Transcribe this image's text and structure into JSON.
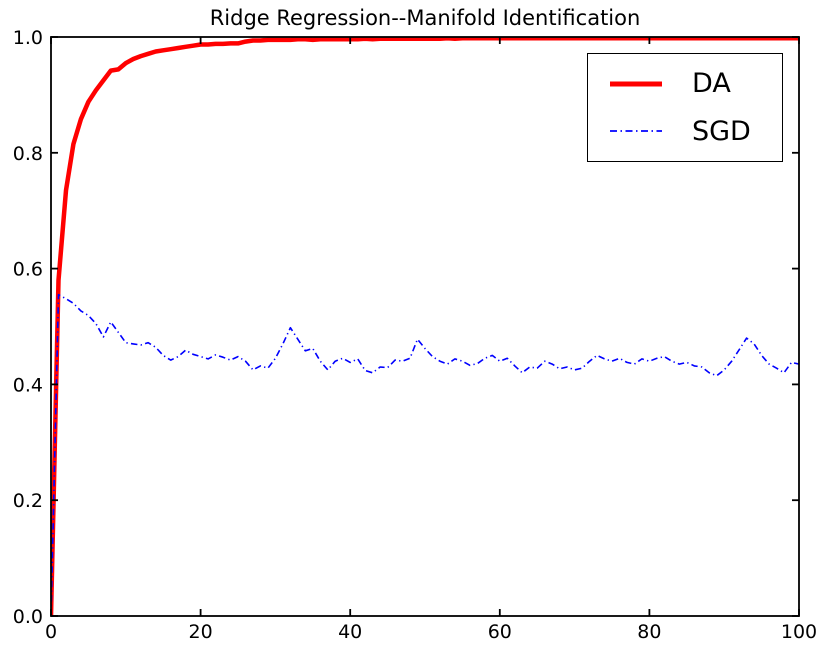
{
  "figure": {
    "title": "Ridge Regression--Manifold Identification",
    "background_color": "#ffffff",
    "frame_color": "#000000"
  },
  "legend": {
    "position": "upper right",
    "entries": [
      {
        "label": "DA",
        "color": "#ff0000",
        "linestyle": "solid",
        "linewidth": 4.5
      },
      {
        "label": "SGD",
        "color": "#0000ff",
        "linestyle": "dashdot",
        "linewidth": 1.6
      }
    ]
  },
  "chart_data": {
    "type": "line",
    "title": "Ridge Regression--Manifold Identification",
    "xlabel": "",
    "ylabel": "",
    "xlim": [
      0,
      100
    ],
    "ylim": [
      0.0,
      1.0
    ],
    "xticks": [
      0,
      20,
      40,
      60,
      80,
      100
    ],
    "xtick_labels": [
      "0",
      "20",
      "40",
      "60",
      "80",
      "100"
    ],
    "yticks": [
      0.0,
      0.2,
      0.4,
      0.6,
      0.8,
      1.0
    ],
    "ytick_labels": [
      "0.0",
      "0.2",
      "0.4",
      "0.6",
      "0.8",
      "1.0"
    ],
    "grid": false,
    "legend_position": "upper right",
    "x": [
      0,
      1,
      2,
      3,
      4,
      5,
      6,
      7,
      8,
      9,
      10,
      11,
      12,
      13,
      14,
      15,
      16,
      17,
      18,
      19,
      20,
      21,
      22,
      23,
      24,
      25,
      26,
      27,
      28,
      29,
      30,
      31,
      32,
      33,
      34,
      35,
      36,
      37,
      38,
      39,
      40,
      41,
      42,
      43,
      44,
      45,
      46,
      47,
      48,
      49,
      50,
      51,
      52,
      53,
      54,
      55,
      56,
      57,
      58,
      59,
      60,
      61,
      62,
      63,
      64,
      65,
      66,
      67,
      68,
      69,
      70,
      71,
      72,
      73,
      74,
      75,
      76,
      77,
      78,
      79,
      80,
      81,
      82,
      83,
      84,
      85,
      86,
      87,
      88,
      89,
      90,
      91,
      92,
      93,
      94,
      95,
      96,
      97,
      98,
      99,
      100
    ],
    "series": [
      {
        "name": "DA",
        "color": "#ff0000",
        "linestyle": "solid",
        "linewidth": 4.5,
        "values": [
          0.0,
          0.58,
          0.735,
          0.815,
          0.858,
          0.888,
          0.908,
          0.925,
          0.942,
          0.944,
          0.955,
          0.962,
          0.967,
          0.971,
          0.975,
          0.977,
          0.979,
          0.981,
          0.983,
          0.985,
          0.987,
          0.987,
          0.988,
          0.988,
          0.989,
          0.989,
          0.992,
          0.994,
          0.994,
          0.995,
          0.995,
          0.995,
          0.995,
          0.996,
          0.996,
          0.995,
          0.996,
          0.996,
          0.996,
          0.996,
          0.996,
          0.996,
          0.997,
          0.996,
          0.997,
          0.997,
          0.997,
          0.997,
          0.997,
          0.997,
          0.997,
          0.997,
          0.997,
          0.998,
          0.997,
          0.998,
          0.998,
          0.998,
          0.998,
          0.998,
          0.998,
          0.998,
          0.998,
          0.998,
          0.998,
          0.998,
          0.998,
          0.998,
          0.998,
          0.998,
          0.998,
          0.998,
          0.998,
          0.998,
          0.998,
          0.998,
          0.998,
          0.998,
          0.998,
          0.998,
          0.998,
          0.998,
          0.998,
          0.998,
          0.998,
          0.998,
          0.998,
          0.998,
          0.998,
          0.998,
          0.998,
          0.998,
          0.998,
          0.998,
          0.998,
          0.998,
          0.998,
          0.998,
          0.998,
          0.998,
          0.998
        ]
      },
      {
        "name": "SGD",
        "color": "#0000ff",
        "linestyle": "dashdot",
        "linewidth": 1.6,
        "values": [
          0.0,
          0.555,
          0.548,
          0.54,
          0.527,
          0.519,
          0.505,
          0.482,
          0.508,
          0.49,
          0.472,
          0.47,
          0.468,
          0.472,
          0.464,
          0.45,
          0.442,
          0.448,
          0.459,
          0.452,
          0.448,
          0.444,
          0.451,
          0.447,
          0.442,
          0.448,
          0.44,
          0.425,
          0.432,
          0.428,
          0.445,
          0.47,
          0.498,
          0.478,
          0.458,
          0.462,
          0.44,
          0.425,
          0.44,
          0.445,
          0.438,
          0.444,
          0.424,
          0.42,
          0.43,
          0.429,
          0.442,
          0.44,
          0.445,
          0.478,
          0.462,
          0.448,
          0.44,
          0.435,
          0.444,
          0.44,
          0.433,
          0.436,
          0.445,
          0.45,
          0.44,
          0.445,
          0.432,
          0.42,
          0.43,
          0.428,
          0.44,
          0.435,
          0.427,
          0.43,
          0.425,
          0.428,
          0.44,
          0.45,
          0.444,
          0.44,
          0.445,
          0.438,
          0.435,
          0.444,
          0.44,
          0.445,
          0.448,
          0.44,
          0.435,
          0.438,
          0.432,
          0.43,
          0.42,
          0.415,
          0.425,
          0.44,
          0.46,
          0.48,
          0.47,
          0.45,
          0.435,
          0.428,
          0.42,
          0.438,
          0.435
        ]
      }
    ]
  }
}
